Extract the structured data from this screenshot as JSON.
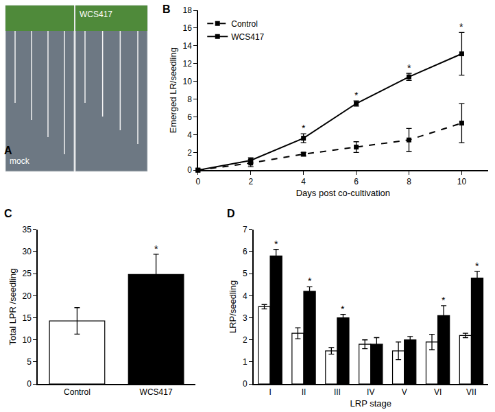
{
  "chart_data": [
    {
      "type": "image",
      "title": "A",
      "labels": [
        "mock",
        "WCS417"
      ]
    },
    {
      "type": "line",
      "title": "B",
      "x_label": "Days post co-cultivation",
      "y_label": "Emerged LR/seedling",
      "x": [
        0,
        2,
        4,
        6,
        8,
        10
      ],
      "series": [
        {
          "name": "Control",
          "color": "#000000",
          "line_style": "dashed",
          "marker": "square",
          "values": [
            0,
            0.8,
            1.8,
            2.6,
            3.4,
            5.3
          ],
          "errors": [
            0,
            0.4,
            0.2,
            0.6,
            1.3,
            2.2
          ]
        },
        {
          "name": "WCS417",
          "color": "#000000",
          "line_style": "solid",
          "marker": "square",
          "values": [
            0,
            1.1,
            3.6,
            7.5,
            10.5,
            13.1
          ],
          "errors": [
            0,
            0.3,
            0.5,
            0.3,
            0.4,
            2.4
          ]
        }
      ],
      "xlim": [
        0,
        11
      ],
      "xticks": [
        0,
        2,
        4,
        6,
        8,
        10
      ],
      "ylim": [
        0,
        18
      ],
      "yticks": [
        0,
        2,
        4,
        6,
        8,
        10,
        12,
        14,
        16,
        18
      ],
      "legend": "upper left",
      "grid": false,
      "annotations": [
        {
          "x": 4,
          "series": 1,
          "text": "*"
        },
        {
          "x": 6,
          "series": 1,
          "text": "*"
        },
        {
          "x": 8,
          "series": 1,
          "text": "*"
        },
        {
          "x": 10,
          "series": 1,
          "text": "*"
        }
      ]
    },
    {
      "type": "bar",
      "title": "C",
      "y_label": "Total LPR /seedling",
      "categories": [
        "Control",
        "WCS417"
      ],
      "values": [
        14.3,
        24.8
      ],
      "errors": [
        3.0,
        4.6
      ],
      "colors": [
        "#ffffff",
        "#000000"
      ],
      "ylim": [
        0,
        35
      ],
      "yticks": [
        0,
        5,
        10,
        15,
        20,
        25,
        30,
        35
      ],
      "grid": false,
      "annotations": [
        {
          "category": "WCS417",
          "text": "*"
        }
      ]
    },
    {
      "type": "bar",
      "title": "D",
      "x_label": "LRP stage",
      "y_label": "LRP/seedling",
      "categories": [
        "I",
        "II",
        "III",
        "IV",
        "V",
        "VI",
        "VII"
      ],
      "series": [
        {
          "color": "#ffffff",
          "values": [
            3.5,
            2.3,
            1.5,
            1.8,
            1.5,
            1.9,
            2.2
          ],
          "errors": [
            0.1,
            0.25,
            0.15,
            0.2,
            0.4,
            0.35,
            0.1
          ]
        },
        {
          "color": "#000000",
          "values": [
            5.8,
            4.2,
            3.0,
            1.8,
            2.0,
            3.1,
            4.8
          ],
          "errors": [
            0.3,
            0.2,
            0.15,
            0.3,
            0.15,
            0.45,
            0.3
          ]
        }
      ],
      "ylim": [
        0,
        7
      ],
      "yticks": [
        0,
        1,
        2,
        3,
        4,
        5,
        6,
        7
      ],
      "grid": false,
      "annotations": [
        {
          "category": "I",
          "series": 1,
          "text": "*"
        },
        {
          "category": "II",
          "series": 1,
          "text": "*"
        },
        {
          "category": "III",
          "series": 1,
          "text": "*"
        },
        {
          "category": "VI",
          "series": 1,
          "text": "*"
        },
        {
          "category": "VII",
          "series": 1,
          "text": "*"
        }
      ]
    }
  ]
}
